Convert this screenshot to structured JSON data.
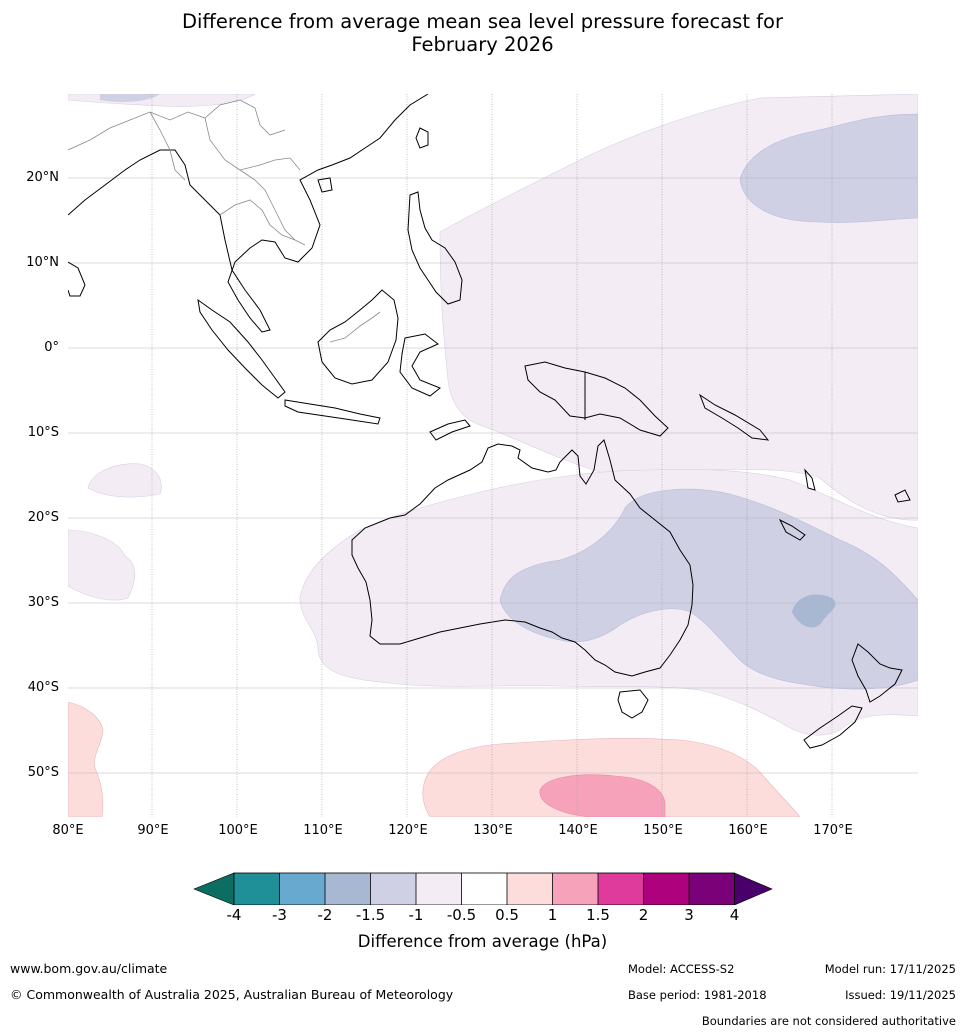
{
  "title": {
    "line1": "Difference from average mean sea level pressure forecast for",
    "line2": "February 2026"
  },
  "map": {
    "region": "Australasia / Maritime Continent / Western Pacific",
    "latitude_labels": [
      "20°N",
      "10°N",
      "0°",
      "10°S",
      "20°S",
      "30°S",
      "40°S",
      "50°S"
    ],
    "longitude_labels": [
      "80°E",
      "90°E",
      "100°E",
      "110°E",
      "120°E",
      "130°E",
      "140°E",
      "150°E",
      "160°E",
      "170°E"
    ],
    "extent": {
      "lon_min": 80,
      "lon_max": 180,
      "lat_min": -55,
      "lat_max": 30
    },
    "anomaly_colors": {
      "-0.5_to_-1": "#f3ecf5",
      "-1_to_-1.5": "#cfd0e4",
      "-1.5_to_-2": "#a8b7d2",
      "0.5_to_1": "#fddcdc",
      "1_to_1.5": "#f7a2bb"
    }
  },
  "colorbar": {
    "tick_labels": [
      "-4",
      "-3",
      "-2",
      "-1.5",
      "-1",
      "-0.5",
      "0.5",
      "1",
      "1.5",
      "2",
      "3",
      "4"
    ],
    "colors": [
      "#0b6e60",
      "#1f9098",
      "#67a9cf",
      "#a8b7d2",
      "#cfd0e4",
      "#f3ecf5",
      "#ffffff",
      "#fddcdc",
      "#f7a2bb",
      "#df3b9c",
      "#ae017e",
      "#7a0177",
      "#4a006a"
    ],
    "label": "Difference from average (hPa)"
  },
  "footer": {
    "website": "www.bom.gov.au/climate",
    "copyright": "© Commonwealth of Australia 2025, Australian Bureau of Meteorology",
    "model": "Model: ACCESS-S2",
    "base_period": "Base period: 1981-2018",
    "model_run": "Model run: 17/11/2025",
    "issued": "Issued: 19/11/2025",
    "disclaimer": "Boundaries are not considered authoritative"
  }
}
